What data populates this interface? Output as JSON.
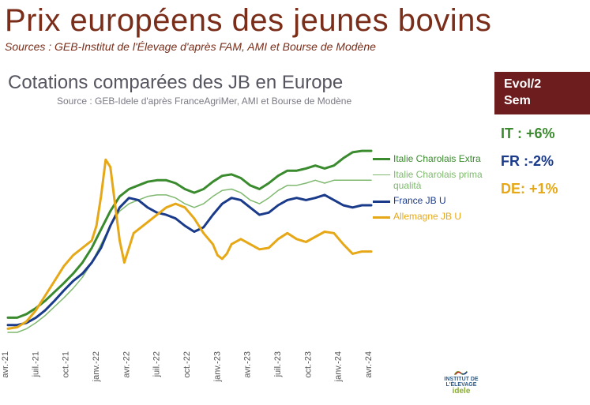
{
  "header": {
    "title": "Prix européens des jeunes bovins",
    "sources": "Sources : GEB-Institut de l'Élevage d'après FAM, AMI et Bourse de Modène"
  },
  "chart": {
    "title": "Cotations comparées des JB en Europe",
    "source": "Source : GEB-Idele d'après FranceAgriMer, AMI et Bourse de Modène",
    "background_color": "#ffffff",
    "x_labels": [
      "avr.-21",
      "juil.-21",
      "oct.-21",
      "janv.-22",
      "avr.-22",
      "juil.-22",
      "oct.-22",
      "janv.-23",
      "avr.-23",
      "juil.-23",
      "oct.-23",
      "janv.-24",
      "avr.-24"
    ],
    "x_min": 0,
    "x_max": 156,
    "y_min": 3.2,
    "y_max": 6.1,
    "series": [
      {
        "id": "it_extra",
        "label": "Italie Charolais Extra",
        "color": "#3a8a2e",
        "line_width": 3,
        "data": [
          [
            0,
            3.55
          ],
          [
            4,
            3.55
          ],
          [
            8,
            3.6
          ],
          [
            12,
            3.68
          ],
          [
            16,
            3.78
          ],
          [
            20,
            3.9
          ],
          [
            24,
            4.02
          ],
          [
            28,
            4.15
          ],
          [
            32,
            4.3
          ],
          [
            36,
            4.5
          ],
          [
            40,
            4.75
          ],
          [
            44,
            5.0
          ],
          [
            48,
            5.2
          ],
          [
            52,
            5.3
          ],
          [
            56,
            5.35
          ],
          [
            60,
            5.4
          ],
          [
            64,
            5.42
          ],
          [
            68,
            5.42
          ],
          [
            72,
            5.38
          ],
          [
            76,
            5.3
          ],
          [
            80,
            5.25
          ],
          [
            84,
            5.3
          ],
          [
            88,
            5.4
          ],
          [
            92,
            5.48
          ],
          [
            96,
            5.5
          ],
          [
            100,
            5.45
          ],
          [
            104,
            5.35
          ],
          [
            108,
            5.3
          ],
          [
            112,
            5.38
          ],
          [
            116,
            5.48
          ],
          [
            120,
            5.55
          ],
          [
            124,
            5.55
          ],
          [
            128,
            5.58
          ],
          [
            132,
            5.62
          ],
          [
            136,
            5.58
          ],
          [
            140,
            5.62
          ],
          [
            144,
            5.72
          ],
          [
            148,
            5.8
          ],
          [
            152,
            5.82
          ],
          [
            156,
            5.82
          ]
        ]
      },
      {
        "id": "it_prima",
        "label": "Italie Charolais prima qualità",
        "color": "#7fb96f",
        "line_width": 1.5,
        "data": [
          [
            0,
            3.35
          ],
          [
            4,
            3.35
          ],
          [
            8,
            3.4
          ],
          [
            12,
            3.48
          ],
          [
            16,
            3.58
          ],
          [
            20,
            3.7
          ],
          [
            24,
            3.82
          ],
          [
            28,
            3.95
          ],
          [
            32,
            4.1
          ],
          [
            36,
            4.3
          ],
          [
            40,
            4.55
          ],
          [
            44,
            4.8
          ],
          [
            48,
            5.0
          ],
          [
            52,
            5.1
          ],
          [
            56,
            5.15
          ],
          [
            60,
            5.2
          ],
          [
            64,
            5.22
          ],
          [
            68,
            5.22
          ],
          [
            72,
            5.18
          ],
          [
            76,
            5.1
          ],
          [
            80,
            5.05
          ],
          [
            84,
            5.1
          ],
          [
            88,
            5.2
          ],
          [
            92,
            5.28
          ],
          [
            96,
            5.3
          ],
          [
            100,
            5.25
          ],
          [
            104,
            5.15
          ],
          [
            108,
            5.1
          ],
          [
            112,
            5.18
          ],
          [
            116,
            5.28
          ],
          [
            120,
            5.35
          ],
          [
            124,
            5.35
          ],
          [
            128,
            5.38
          ],
          [
            132,
            5.42
          ],
          [
            136,
            5.38
          ],
          [
            140,
            5.42
          ],
          [
            144,
            5.42
          ],
          [
            148,
            5.42
          ],
          [
            152,
            5.42
          ],
          [
            156,
            5.42
          ]
        ]
      },
      {
        "id": "fr_jbu",
        "label": "France JB U",
        "color": "#1a3a8a",
        "line_width": 3,
        "data": [
          [
            0,
            3.45
          ],
          [
            4,
            3.45
          ],
          [
            8,
            3.48
          ],
          [
            12,
            3.55
          ],
          [
            16,
            3.65
          ],
          [
            20,
            3.78
          ],
          [
            24,
            3.92
          ],
          [
            28,
            4.05
          ],
          [
            32,
            4.15
          ],
          [
            36,
            4.3
          ],
          [
            40,
            4.5
          ],
          [
            44,
            4.8
          ],
          [
            48,
            5.05
          ],
          [
            52,
            5.18
          ],
          [
            56,
            5.15
          ],
          [
            60,
            5.05
          ],
          [
            64,
            4.98
          ],
          [
            68,
            4.95
          ],
          [
            72,
            4.9
          ],
          [
            76,
            4.8
          ],
          [
            80,
            4.72
          ],
          [
            84,
            4.78
          ],
          [
            88,
            4.95
          ],
          [
            92,
            5.1
          ],
          [
            96,
            5.18
          ],
          [
            100,
            5.15
          ],
          [
            104,
            5.05
          ],
          [
            108,
            4.95
          ],
          [
            112,
            4.98
          ],
          [
            116,
            5.08
          ],
          [
            120,
            5.15
          ],
          [
            124,
            5.18
          ],
          [
            128,
            5.15
          ],
          [
            132,
            5.18
          ],
          [
            136,
            5.22
          ],
          [
            140,
            5.15
          ],
          [
            144,
            5.08
          ],
          [
            148,
            5.05
          ],
          [
            152,
            5.08
          ],
          [
            156,
            5.08
          ]
        ]
      },
      {
        "id": "de_jbu",
        "label": "Allemagne JB U",
        "color": "#e6a817",
        "line_width": 3,
        "data": [
          [
            0,
            3.4
          ],
          [
            4,
            3.42
          ],
          [
            8,
            3.5
          ],
          [
            12,
            3.65
          ],
          [
            16,
            3.85
          ],
          [
            20,
            4.05
          ],
          [
            24,
            4.25
          ],
          [
            28,
            4.4
          ],
          [
            32,
            4.5
          ],
          [
            36,
            4.6
          ],
          [
            38,
            4.8
          ],
          [
            40,
            5.2
          ],
          [
            42,
            5.7
          ],
          [
            44,
            5.6
          ],
          [
            46,
            5.1
          ],
          [
            48,
            4.6
          ],
          [
            50,
            4.3
          ],
          [
            52,
            4.5
          ],
          [
            54,
            4.7
          ],
          [
            56,
            4.75
          ],
          [
            60,
            4.85
          ],
          [
            64,
            4.95
          ],
          [
            68,
            5.05
          ],
          [
            72,
            5.1
          ],
          [
            76,
            5.05
          ],
          [
            80,
            4.9
          ],
          [
            84,
            4.7
          ],
          [
            88,
            4.55
          ],
          [
            90,
            4.4
          ],
          [
            92,
            4.35
          ],
          [
            94,
            4.42
          ],
          [
            96,
            4.55
          ],
          [
            100,
            4.62
          ],
          [
            104,
            4.55
          ],
          [
            108,
            4.48
          ],
          [
            112,
            4.5
          ],
          [
            116,
            4.62
          ],
          [
            120,
            4.7
          ],
          [
            124,
            4.62
          ],
          [
            128,
            4.58
          ],
          [
            132,
            4.65
          ],
          [
            136,
            4.72
          ],
          [
            140,
            4.7
          ],
          [
            144,
            4.55
          ],
          [
            148,
            4.42
          ],
          [
            152,
            4.45
          ],
          [
            156,
            4.45
          ]
        ]
      }
    ]
  },
  "sidebar": {
    "evol_line1": "Evol/2",
    "evol_line2": "Sem",
    "stats": [
      {
        "label": "IT : +6%",
        "color": "#3a8a2e"
      },
      {
        "label": "FR :-2%",
        "color": "#1a3a8a"
      },
      {
        "label": "DE: +1%",
        "color": "#e6a817"
      }
    ]
  },
  "logo": {
    "text1": "INSTITUT DE",
    "text2": "L'ÉLEVAGE",
    "sub": "idele"
  }
}
